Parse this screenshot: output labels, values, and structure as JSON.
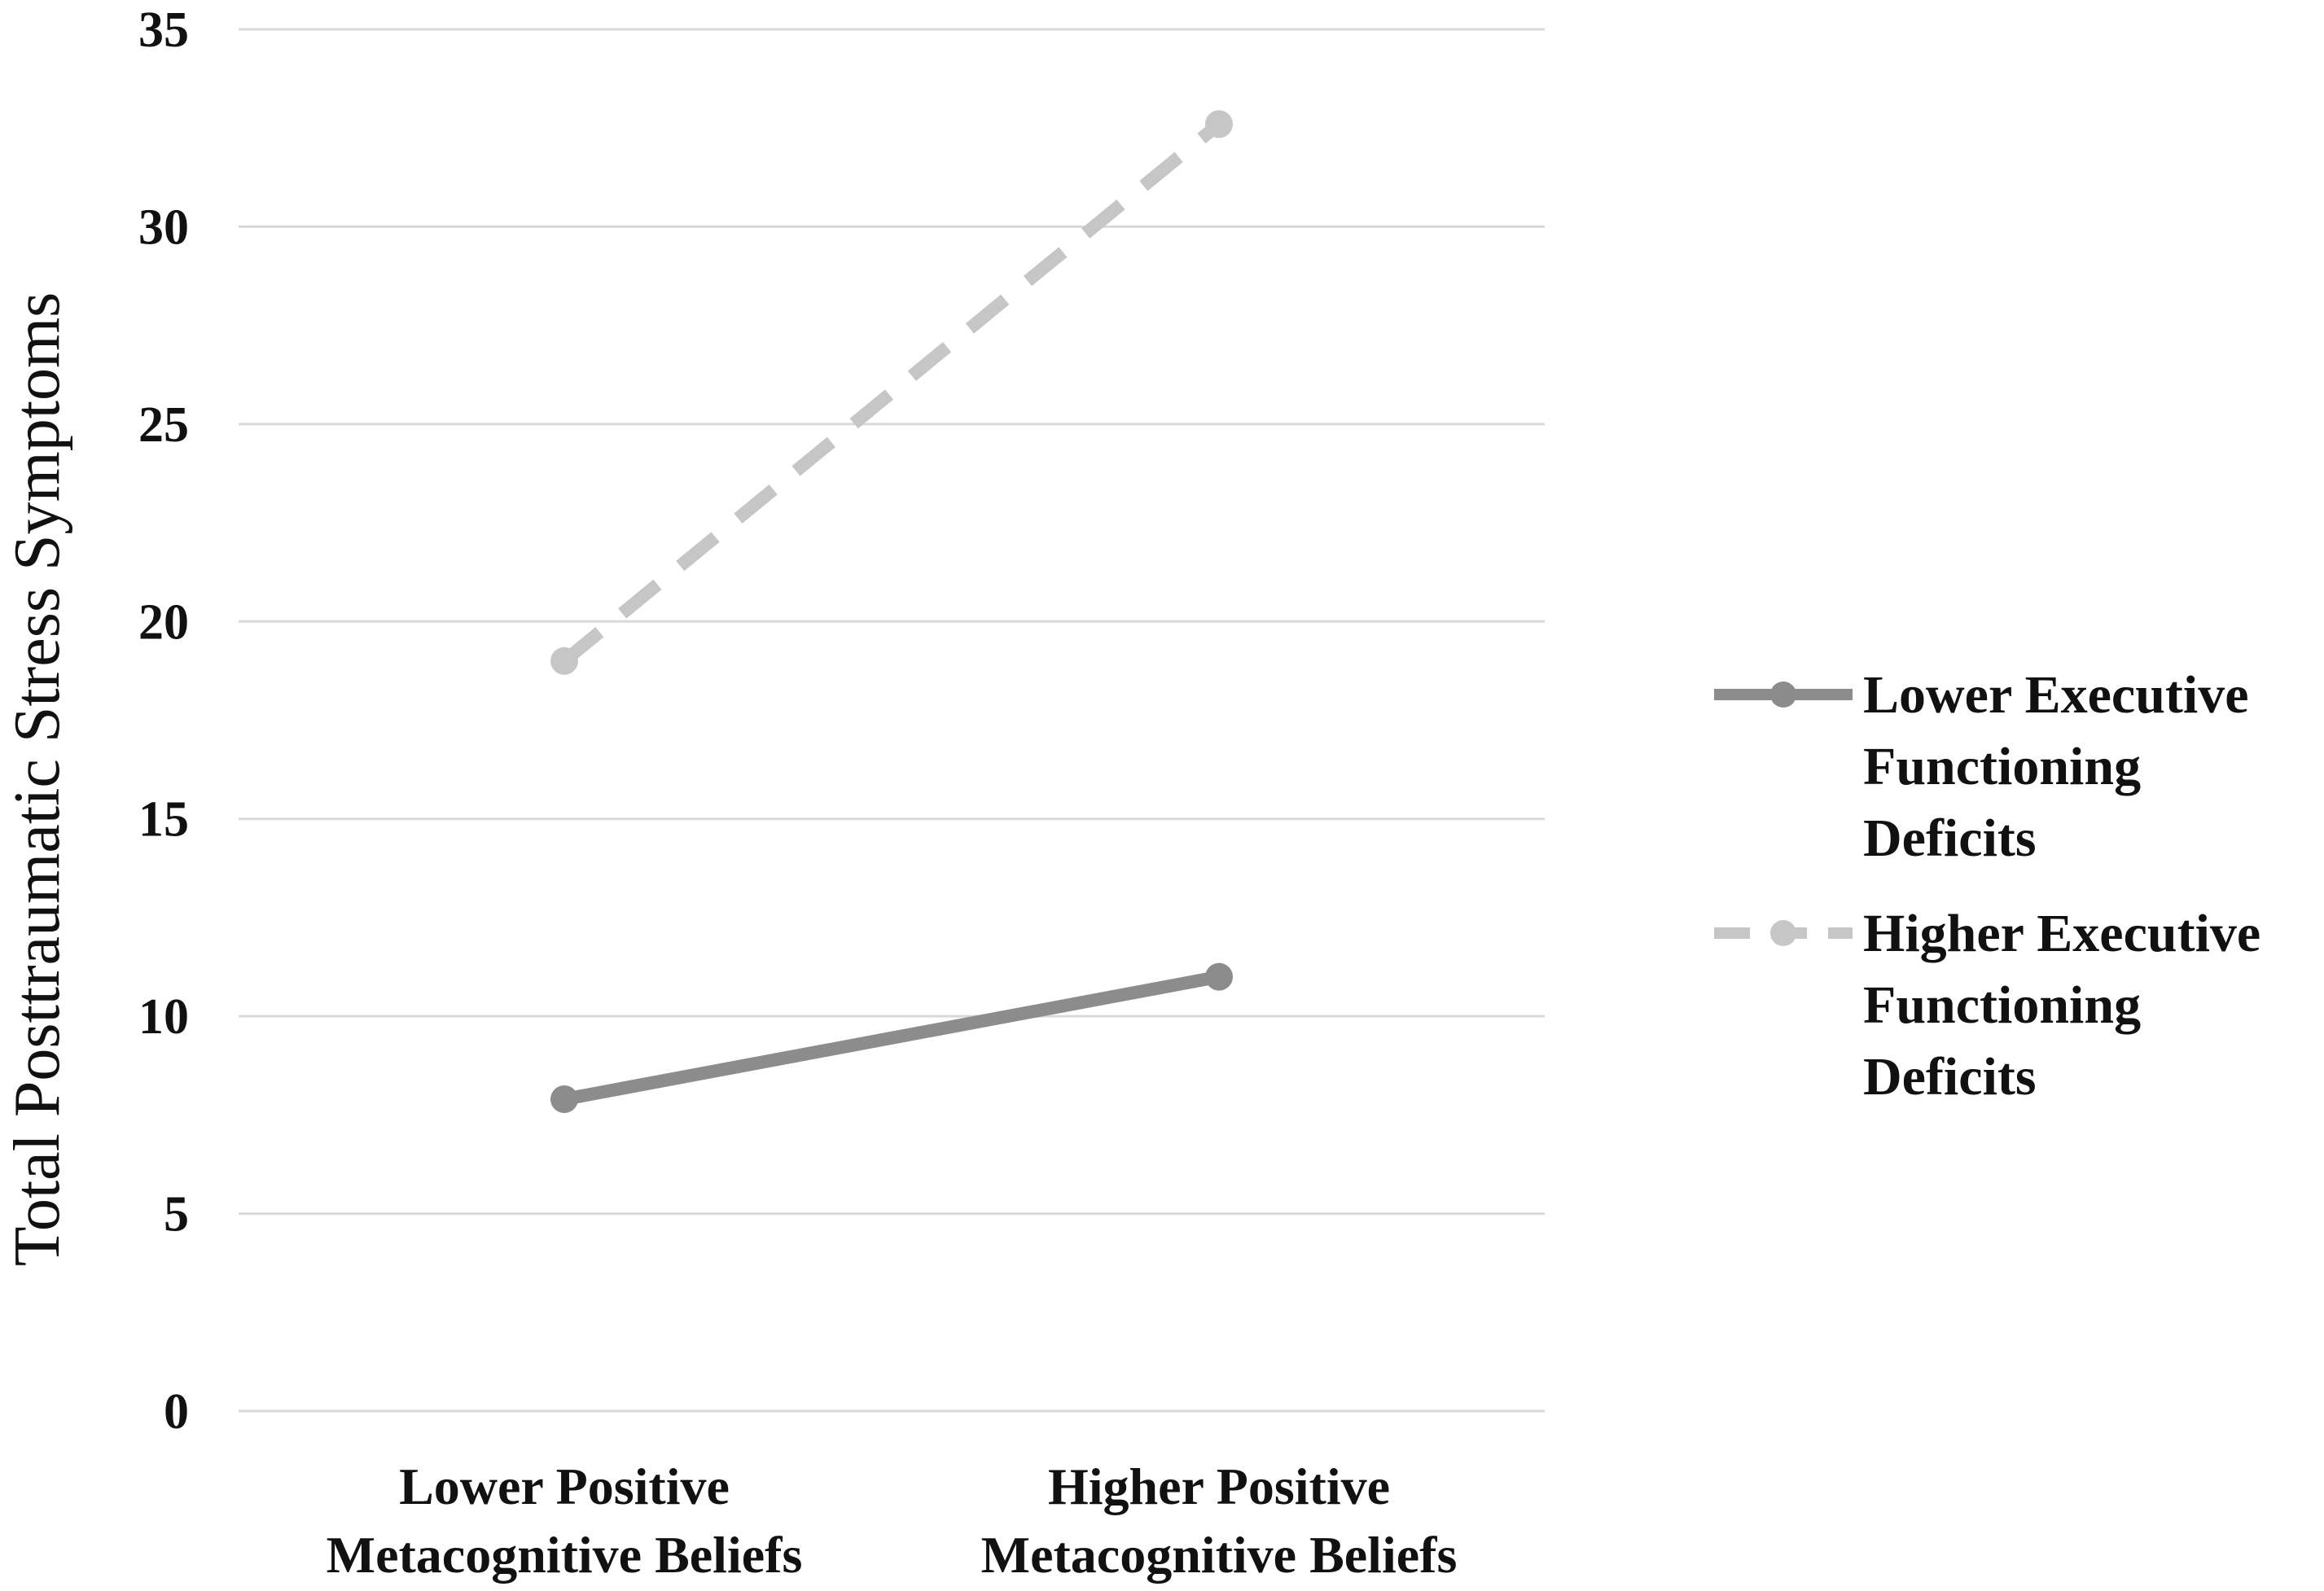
{
  "chart_data": {
    "type": "line",
    "title": "",
    "xlabel": "",
    "ylabel": "Total Posttraumatic Stress Symptoms",
    "ylim": [
      0,
      35
    ],
    "yticks": [
      0,
      5,
      10,
      15,
      20,
      25,
      30,
      35
    ],
    "grid": "horizontal",
    "legend_position": "right",
    "categories": [
      [
        "Lower Positive",
        "Metacognitive Beliefs"
      ],
      [
        "Higher Positive",
        "Metacognitive Beliefs"
      ]
    ],
    "series": [
      {
        "name": [
          "Lower Executive",
          "Functioning",
          "Deficits"
        ],
        "values": [
          7.9,
          11.0
        ],
        "color": "#8c8c8c",
        "line_style": "solid"
      },
      {
        "name": [
          "Higher Executive",
          "Functioning",
          "Deficits"
        ],
        "values": [
          19.0,
          32.6
        ],
        "color": "#c6c6c6",
        "line_style": "dashed"
      }
    ],
    "gridline_color": "#d9d9d9"
  }
}
